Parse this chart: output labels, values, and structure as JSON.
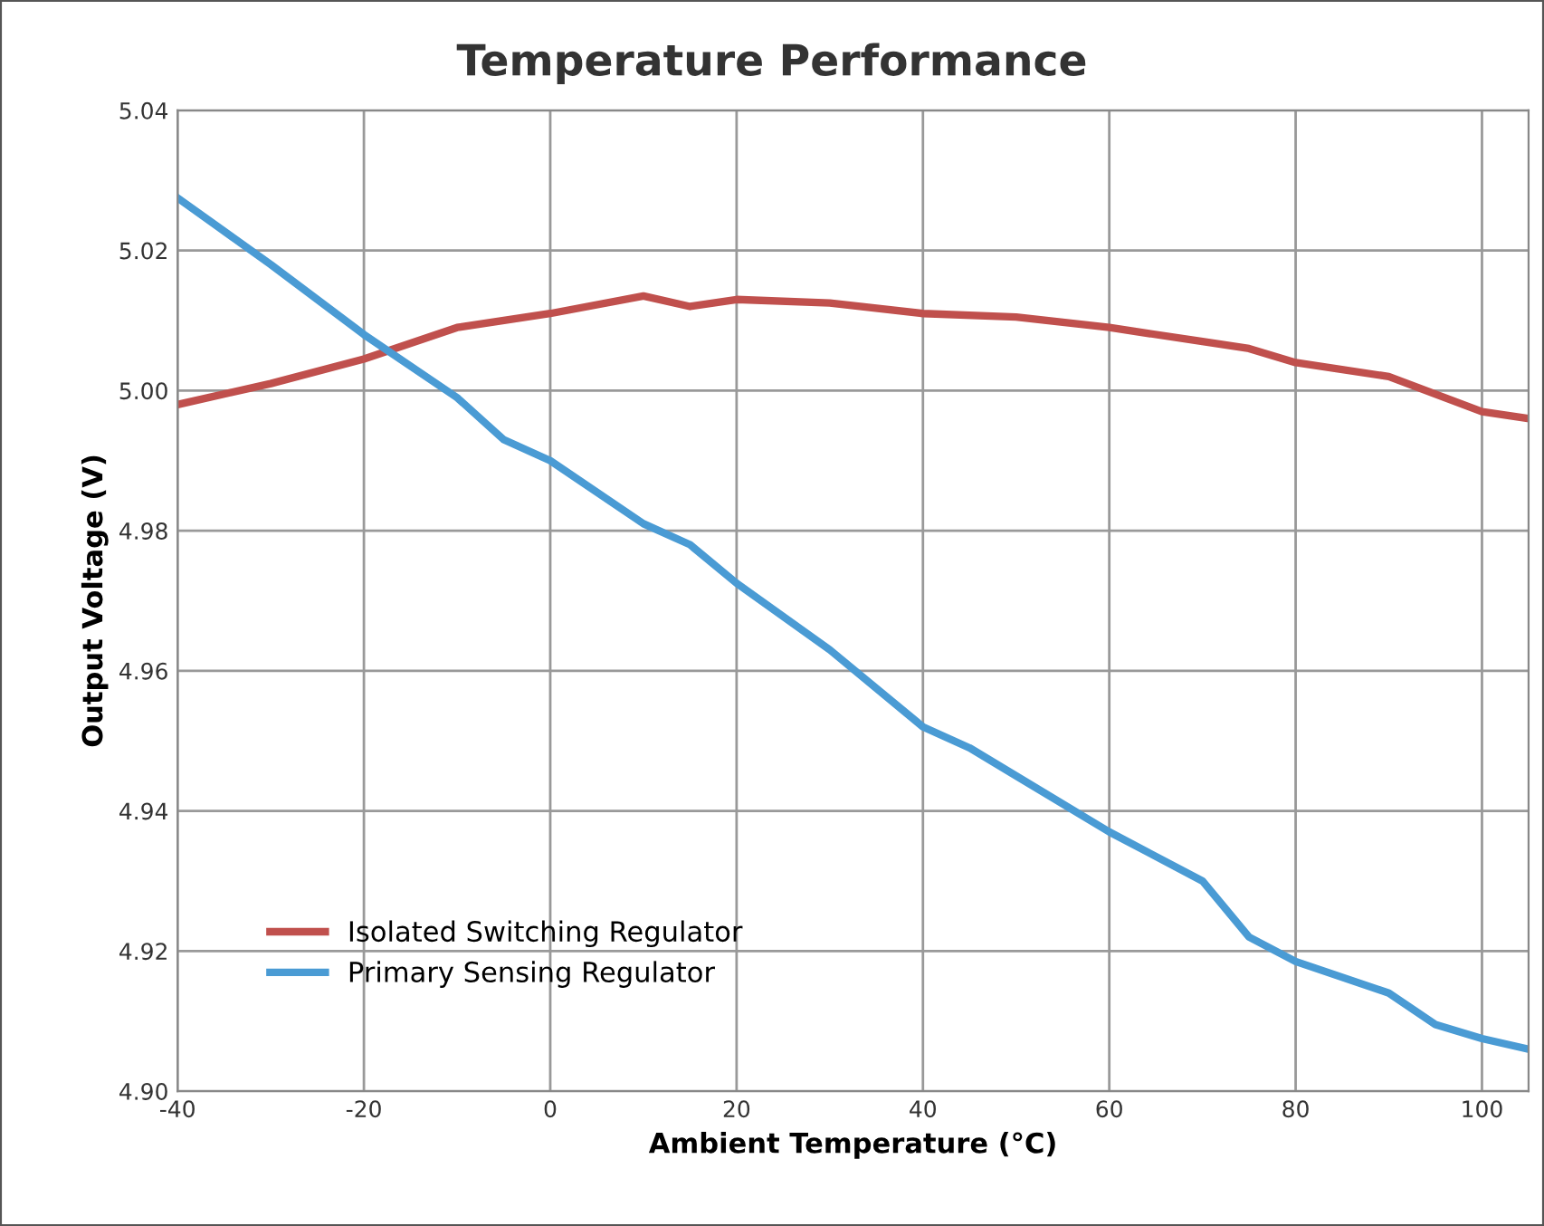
{
  "chart_data": {
    "type": "line",
    "title": "Temperature Performance",
    "xlabel": "Ambient Temperature (°C)",
    "ylabel": "Output Voltage (V)",
    "xlim": [
      -40,
      105
    ],
    "xticks": [
      -40,
      -20,
      0,
      20,
      40,
      60,
      80,
      100
    ],
    "ylim": [
      4.9,
      5.04
    ],
    "yticks": [
      {
        "value": 4.9,
        "label": "4.90"
      },
      {
        "value": 4.92,
        "label": "4.92"
      },
      {
        "value": 4.94,
        "label": "4.94"
      },
      {
        "value": 4.96,
        "label": "4.96"
      },
      {
        "value": 4.98,
        "label": "4.98"
      },
      {
        "value": 5.0,
        "label": "5.00"
      },
      {
        "value": 5.02,
        "label": "5.02"
      },
      {
        "value": 5.04,
        "label": "5.04"
      }
    ],
    "grid": true,
    "legend": "lower left",
    "marker": "none",
    "line_style": "solid",
    "series": [
      {
        "name": "Isolated Switching Regulator",
        "color": "#c0504d",
        "x": [
          -40,
          -30,
          -20,
          -10,
          0,
          10,
          15,
          20,
          30,
          40,
          50,
          60,
          70,
          75,
          80,
          90,
          100,
          105
        ],
        "values": [
          4.998,
          5.001,
          5.0045,
          5.009,
          5.011,
          5.0135,
          5.012,
          5.013,
          5.0125,
          5.011,
          5.0105,
          5.009,
          5.007,
          5.006,
          5.004,
          5.002,
          4.997,
          4.996
        ]
      },
      {
        "name": "Primary Sensing Regulator",
        "color": "#4a9bd4",
        "x": [
          -40,
          -30,
          -20,
          -10,
          -5,
          0,
          10,
          15,
          20,
          30,
          40,
          45,
          50,
          60,
          70,
          75,
          80,
          90,
          95,
          100,
          105
        ],
        "values": [
          5.0275,
          5.018,
          5.008,
          4.999,
          4.993,
          4.99,
          4.981,
          4.978,
          4.9725,
          4.963,
          4.952,
          4.949,
          4.945,
          4.937,
          4.93,
          4.922,
          4.9185,
          4.914,
          4.9095,
          4.9075,
          4.906
        ]
      }
    ]
  }
}
